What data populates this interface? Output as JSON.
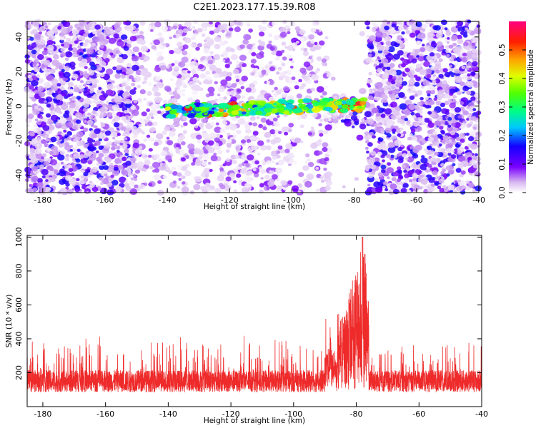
{
  "title": "C2E1.2023.177.15.39.R08",
  "chart_data": [
    {
      "type": "heatmap",
      "xlabel": "Height of straight line (km)",
      "ylabel": "Frequency (Hz)",
      "xlim": [
        -185,
        -40
      ],
      "ylim": [
        -50,
        49
      ],
      "xticks": [
        -180,
        -160,
        -140,
        -120,
        -100,
        -80,
        -60,
        -40
      ],
      "yticks": [
        -40,
        -20,
        0,
        20,
        40
      ],
      "colorbar": {
        "label": "Normalized spectral amplitude",
        "range": [
          0,
          0.6
        ],
        "ticks": [
          0.0,
          0.1,
          0.2,
          0.3,
          0.4,
          0.5
        ]
      },
      "features": {
        "signal_band_frequency_hz": -3,
        "signal_band_x_range": [
          -142,
          -77
        ],
        "signal_peak_amplitude": 0.55,
        "low_noise_gap_x_range": [
          -88,
          -76
        ]
      }
    },
    {
      "type": "line",
      "xlabel": "Height of straight line (km)",
      "ylabel": "SNR (10 * v/v)",
      "xlim": [
        -185,
        -40
      ],
      "ylim": [
        0,
        1010
      ],
      "xticks": [
        -180,
        -160,
        -140,
        -120,
        -100,
        -80,
        -60,
        -40
      ],
      "yticks": [
        200,
        400,
        600,
        800,
        1000
      ],
      "series_color": "#ee2a2a",
      "features": {
        "baseline_mean": 150,
        "peak_x": -78,
        "peak_y": 1000,
        "burst_x_range": [
          -86,
          -76
        ]
      }
    }
  ]
}
